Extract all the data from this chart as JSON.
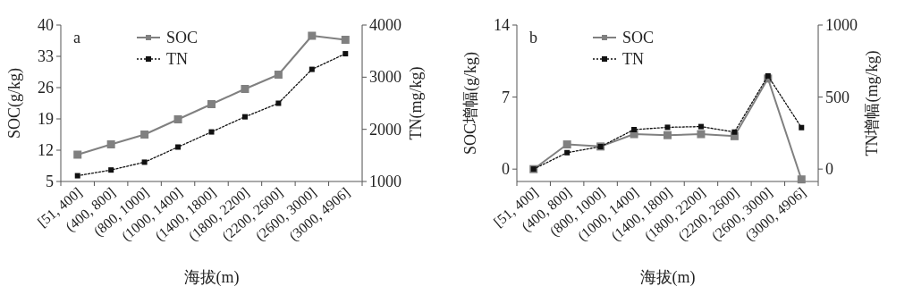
{
  "chart_data": [
    {
      "type": "line",
      "title": "a",
      "xlabel": "海拔(m)",
      "ylabel": "SOC(g/kg)",
      "y2label": "TN(mg/kg)",
      "categories": [
        "[51, 400]",
        "(400, 800]",
        "(800, 1000]",
        "(1000, 1400]",
        "(1400, 1800]",
        "(1800, 2200]",
        "(2200, 2600]",
        "(2600, 3000]",
        "(3000, 4906]"
      ],
      "series": [
        {
          "name": "SOC",
          "color": "#808080",
          "line_style": "solid",
          "values": [
            11.0,
            13.3,
            15.5,
            18.9,
            22.3,
            25.7,
            28.9,
            37.6,
            36.7
          ]
        },
        {
          "name": "TN",
          "color": "#111111",
          "line_style": "dotted",
          "axis": "y2",
          "values": [
            1110,
            1220,
            1370,
            1660,
            1950,
            2240,
            2500,
            3150,
            3450
          ]
        }
      ],
      "ylim": [
        5,
        40
      ],
      "yticks": [
        5,
        12,
        19,
        26,
        33,
        40
      ],
      "y2lim": [
        1000,
        4000
      ],
      "y2ticks": [
        1000,
        2000,
        3000,
        4000
      ],
      "marker": "square",
      "legend": "top left"
    },
    {
      "type": "line",
      "title": "b",
      "xlabel": "海拔(m)",
      "ylabel": "SOC增幅(g/kg)",
      "y2label": "TN增幅(mg/kg)",
      "categories": [
        "[51, 400]",
        "(400, 800]",
        "(800, 1000]",
        "(1000, 1400]",
        "(1400, 1800]",
        "(1800, 2200]",
        "(2200, 2600]",
        "(2600, 3000]",
        "(3000, 4906]"
      ],
      "series": [
        {
          "name": "SOC",
          "color": "#808080",
          "line_style": "solid",
          "values": [
            0,
            2.4,
            2.2,
            3.4,
            3.3,
            3.4,
            3.2,
            8.8,
            -1.0
          ]
        },
        {
          "name": "TN",
          "color": "#111111",
          "line_style": "dotted",
          "axis": "y2",
          "values": [
            0,
            114,
            156,
            274,
            290,
            295,
            257,
            647,
            288
          ]
        }
      ],
      "ylim": [
        -1.2,
        14
      ],
      "yticks": [
        0,
        7,
        14
      ],
      "y2lim": [
        -86,
        1000
      ],
      "y2ticks": [
        0,
        500,
        1000
      ],
      "marker": "square",
      "legend": "top left"
    }
  ]
}
